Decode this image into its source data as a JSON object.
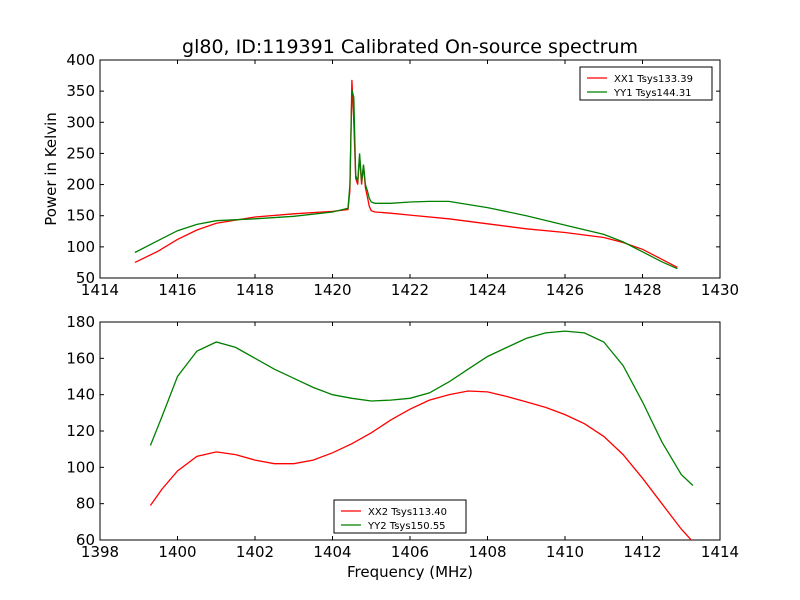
{
  "figure": {
    "title": "gl80, ID:119391 Calibrated On-source spectrum"
  },
  "chart_data": [
    {
      "type": "line",
      "title": "gl80, ID:119391 Calibrated On-source spectrum",
      "xlabel": "",
      "ylabel": "Power in Kelvin",
      "xlim": [
        1414,
        1430
      ],
      "ylim": [
        50,
        400
      ],
      "xticks": [
        1414,
        1416,
        1418,
        1420,
        1422,
        1424,
        1426,
        1428,
        1430
      ],
      "yticks": [
        50,
        100,
        150,
        200,
        250,
        300,
        350,
        400
      ],
      "grid": false,
      "legend_position": "top-right",
      "series": [
        {
          "name": "XX1 Tsys133.39",
          "color": "#ff0000",
          "x": [
            1414.9,
            1415.5,
            1416.0,
            1416.5,
            1417.0,
            1418.0,
            1419.0,
            1420.0,
            1420.4,
            1420.45,
            1420.5,
            1420.55,
            1420.6,
            1420.65,
            1420.7,
            1420.75,
            1420.8,
            1420.85,
            1420.9,
            1420.95,
            1421.0,
            1421.1,
            1421.5,
            1422.0,
            1423.0,
            1424.0,
            1425.0,
            1426.0,
            1427.0,
            1427.5,
            1428.0,
            1428.5,
            1428.9
          ],
          "y": [
            75,
            93,
            112,
            127,
            138,
            148,
            153,
            157,
            160,
            190,
            368,
            300,
            210,
            200,
            245,
            200,
            230,
            195,
            180,
            165,
            158,
            156,
            154,
            151,
            145,
            137,
            129,
            123,
            115,
            107,
            96,
            80,
            67
          ]
        },
        {
          "name": "YY1 Tsys144.31",
          "color": "#008000",
          "x": [
            1414.9,
            1415.5,
            1416.0,
            1416.5,
            1417.0,
            1418.0,
            1419.0,
            1420.0,
            1420.4,
            1420.45,
            1420.5,
            1420.55,
            1420.6,
            1420.65,
            1420.7,
            1420.75,
            1420.8,
            1420.85,
            1420.9,
            1420.95,
            1421.0,
            1421.1,
            1421.5,
            1422.0,
            1422.5,
            1423.0,
            1424.0,
            1425.0,
            1426.0,
            1427.0,
            1427.5,
            1428.0,
            1428.5,
            1428.9
          ],
          "y": [
            91,
            110,
            126,
            136,
            142,
            145,
            149,
            156,
            162,
            200,
            352,
            340,
            215,
            205,
            250,
            205,
            232,
            200,
            190,
            178,
            172,
            170,
            170,
            172,
            173,
            173,
            163,
            150,
            135,
            120,
            108,
            92,
            76,
            65
          ]
        }
      ]
    },
    {
      "type": "line",
      "title": "",
      "xlabel": "Frequency (MHz)",
      "ylabel": "",
      "xlim": [
        1398,
        1414
      ],
      "ylim": [
        60,
        180
      ],
      "xticks": [
        1398,
        1400,
        1402,
        1404,
        1406,
        1408,
        1410,
        1412,
        1414
      ],
      "yticks": [
        60,
        80,
        100,
        120,
        140,
        160,
        180
      ],
      "grid": false,
      "legend_position": "bottom-center",
      "series": [
        {
          "name": "XX2 Tsys113.40",
          "color": "#ff0000",
          "x": [
            1399.3,
            1399.6,
            1400.0,
            1400.5,
            1401.0,
            1401.5,
            1402.0,
            1402.5,
            1403.0,
            1403.5,
            1404.0,
            1404.5,
            1405.0,
            1405.5,
            1406.0,
            1406.5,
            1407.0,
            1407.5,
            1408.0,
            1408.5,
            1409.0,
            1409.5,
            1410.0,
            1410.5,
            1411.0,
            1411.5,
            1412.0,
            1412.5,
            1413.0,
            1413.3
          ],
          "y": [
            79,
            88,
            98,
            106,
            108.5,
            107,
            104,
            102,
            102,
            104,
            108,
            113,
            119,
            126,
            132,
            137,
            140,
            142,
            141.5,
            139,
            136,
            133,
            129,
            124,
            117,
            107,
            94,
            80,
            66,
            59
          ]
        },
        {
          "name": "YY2 Tsys150.55",
          "color": "#008000",
          "x": [
            1399.3,
            1399.6,
            1400.0,
            1400.5,
            1401.0,
            1401.5,
            1402.0,
            1402.5,
            1403.0,
            1403.5,
            1404.0,
            1404.5,
            1405.0,
            1405.5,
            1406.0,
            1406.5,
            1407.0,
            1407.5,
            1408.0,
            1408.5,
            1409.0,
            1409.5,
            1410.0,
            1410.5,
            1411.0,
            1411.5,
            1412.0,
            1412.5,
            1413.0,
            1413.3
          ],
          "y": [
            112,
            128,
            150,
            164,
            169,
            166,
            160,
            154,
            149,
            144,
            140,
            138,
            136.5,
            137,
            138,
            141,
            147,
            154,
            161,
            166,
            171,
            174,
            175,
            174,
            169,
            156,
            136,
            114,
            96,
            90
          ]
        }
      ]
    }
  ]
}
